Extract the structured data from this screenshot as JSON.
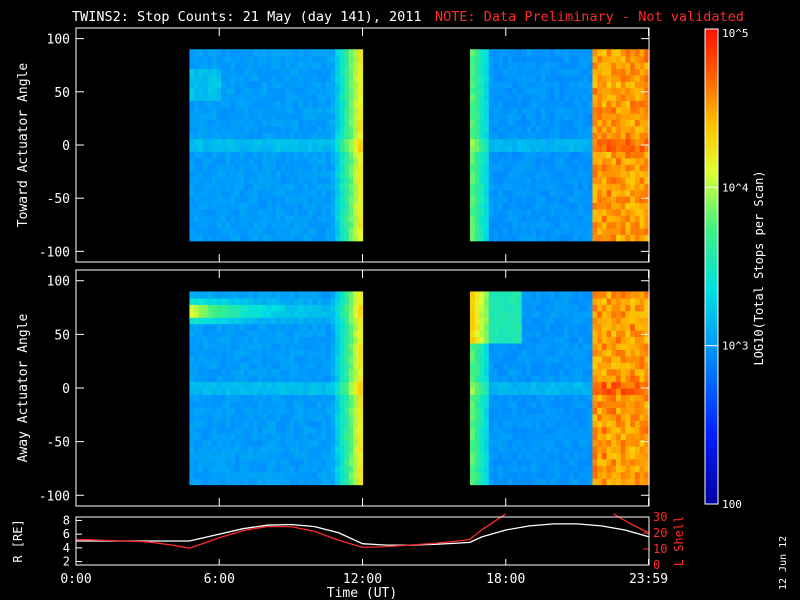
{
  "title": "TWINS2: Stop Counts: 21 May (day 141), 2011",
  "note": "NOTE: Data Preliminary - Not validated",
  "date_stamp": "12 Jun 12",
  "colors": {
    "note": "#ff2a2a",
    "axis": "#ffffff",
    "r_line": "#ffffff",
    "l_line": "#ff2a2a"
  },
  "colorbar": {
    "label": "LOG10(Total Stops per Scan)",
    "ticks": [
      {
        "value": 100,
        "label": "100"
      },
      {
        "value": 1000,
        "label": "10^3"
      },
      {
        "value": 10000,
        "label": "10^4"
      },
      {
        "value": 100000,
        "label": "10^5"
      }
    ],
    "range": [
      100,
      100000
    ],
    "scale": "log",
    "colormap": "rainbow"
  },
  "chart_data": [
    {
      "type": "heatmap",
      "ylabel": "Toward Actuator Angle",
      "ylim": [
        -110,
        110
      ],
      "yticks": [
        100,
        50,
        0,
        -50,
        -100
      ],
      "xlim": [
        0,
        24
      ],
      "data_y_range": [
        -90,
        90
      ],
      "data_intervals": [
        {
          "start": 4.75,
          "end": 12.0
        },
        {
          "start": 16.5,
          "end": 24.0
        }
      ]
    },
    {
      "type": "heatmap",
      "ylabel": "Away Actuator Angle",
      "ylim": [
        -110,
        110
      ],
      "yticks": [
        100,
        50,
        0,
        -50,
        -100
      ],
      "xlim": [
        0,
        24
      ],
      "data_y_range": [
        -90,
        90
      ],
      "data_intervals": [
        {
          "start": 4.75,
          "end": 12.0
        },
        {
          "start": 16.5,
          "end": 24.0
        }
      ]
    },
    {
      "type": "line",
      "xlabel": "Time (UT)",
      "x_ticks": [
        {
          "value": 0,
          "label": "0:00"
        },
        {
          "value": 6,
          "label": "6:00"
        },
        {
          "value": 12,
          "label": "12:00"
        },
        {
          "value": 18,
          "label": "18:00"
        },
        {
          "value": 23.98,
          "label": "23:59"
        }
      ],
      "left_axis": {
        "label": "R [RE]",
        "ylim": [
          1.5,
          8.5
        ],
        "ticks": [
          8,
          6,
          4,
          2
        ]
      },
      "right_axis": {
        "label": "L Shell",
        "ylim": [
          0,
          30
        ],
        "ticks": [
          30,
          20,
          10,
          0
        ]
      },
      "series": [
        {
          "name": "R",
          "axis": "left",
          "x": [
            0,
            1,
            2,
            3,
            4,
            4.75,
            6,
            7,
            8,
            9,
            10,
            11,
            12,
            13,
            14,
            15,
            16,
            16.5,
            17,
            18,
            19,
            20,
            21,
            22,
            23,
            24
          ],
          "y": [
            5.0,
            5.0,
            5.0,
            5.0,
            5.0,
            5.0,
            6.0,
            6.8,
            7.3,
            7.4,
            7.1,
            6.2,
            4.6,
            4.4,
            4.4,
            4.5,
            4.7,
            4.8,
            5.6,
            6.6,
            7.2,
            7.5,
            7.5,
            7.2,
            6.6,
            5.6
          ]
        },
        {
          "name": "L Shell",
          "axis": "right",
          "x": [
            0,
            1,
            2,
            3,
            4,
            4.75,
            6,
            7,
            8,
            9,
            10,
            11,
            12,
            13,
            14,
            15,
            16,
            16.5,
            17,
            18,
            18.01,
            22.5,
            22.51,
            23.2,
            24
          ],
          "y": [
            16,
            15.5,
            15,
            14.5,
            12.5,
            10.5,
            17,
            21.5,
            24,
            24,
            21,
            15.5,
            11,
            11.5,
            12.5,
            13.5,
            15,
            16,
            22,
            32,
            null,
            null,
            32,
            26,
            20
          ]
        }
      ]
    }
  ]
}
